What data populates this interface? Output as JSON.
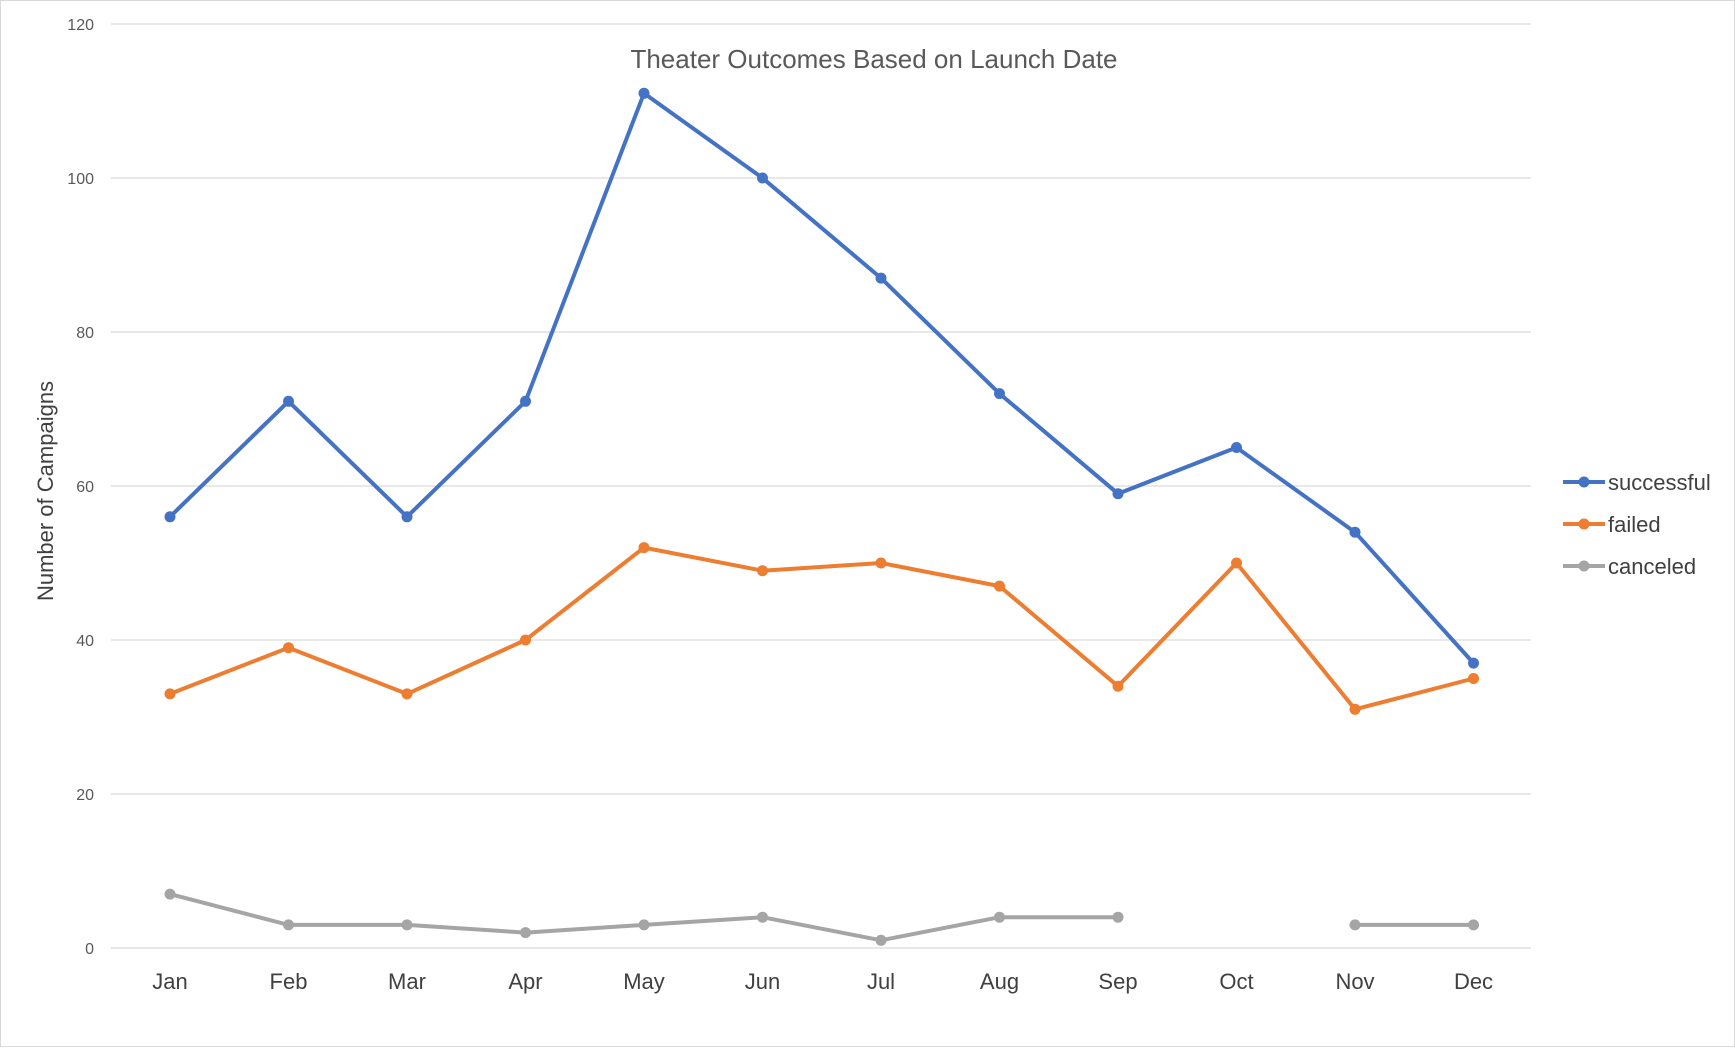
{
  "chart_data": {
    "type": "line",
    "title": "Theater Outcomes Based on Launch Date",
    "xlabel": "",
    "ylabel": "Number of Campaigns",
    "categories": [
      "Jan",
      "Feb",
      "Mar",
      "Apr",
      "May",
      "Jun",
      "Jul",
      "Aug",
      "Sep",
      "Oct",
      "Nov",
      "Dec"
    ],
    "ylim": [
      0,
      120
    ],
    "yticks": [
      "0",
      "20",
      "40",
      "60",
      "80",
      "100",
      "120"
    ],
    "grid": "horizontal",
    "legend_position": "right",
    "series": [
      {
        "name": "successful",
        "color": "#4472C4",
        "values": [
          56,
          71,
          56,
          71,
          111,
          100,
          87,
          72,
          59,
          65,
          54,
          37
        ]
      },
      {
        "name": "failed",
        "color": "#ED7D31",
        "values": [
          33,
          39,
          33,
          40,
          52,
          49,
          50,
          47,
          34,
          50,
          31,
          35
        ]
      },
      {
        "name": "canceled",
        "color": "#A5A5A5",
        "values": [
          7,
          3,
          3,
          2,
          3,
          4,
          1,
          4,
          4,
          null,
          3,
          3
        ]
      }
    ]
  }
}
